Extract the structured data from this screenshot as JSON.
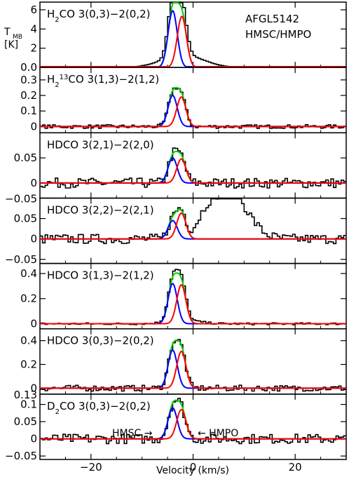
{
  "chart_data": {
    "type": "line",
    "source": "AFGL5142",
    "subtitle": "HMSC/HMPO",
    "xlabel": "Velocity (km/s)",
    "ylabel_main": "T",
    "ylabel_sub": "MB",
    "ylabel_unit": "[K]",
    "xlim": [
      -30,
      30
    ],
    "x_ticks": [
      -20,
      0,
      20
    ],
    "x_tick_labels": [
      "−20",
      "0",
      "20"
    ],
    "annotations": {
      "hmsc": "HMSC →",
      "hmpo": "← HMPO"
    },
    "series_colors": {
      "spectrum": "#000000",
      "hmsc_fit": "#0000ff",
      "hmpo_fit": "#ff0000",
      "total_fit": "#00cc00"
    },
    "panels": [
      {
        "label_parts": [
          {
            "t": "H"
          },
          {
            "t": "2",
            "sub": true
          },
          {
            "t": "CO 3(0,3)−2(0,2)"
          }
        ],
        "ylim": [
          0,
          6.8
        ],
        "y_ticks": [
          0,
          2,
          4,
          6
        ],
        "y_tick_labels": [
          "0.0",
          "2",
          "4",
          "6"
        ],
        "components": [
          {
            "center": -4.0,
            "width": 0.9,
            "amp": 5.9
          },
          {
            "center": -2.2,
            "width": 0.9,
            "amp": 5.3
          }
        ],
        "wings": {
          "amp": 1.3,
          "center": -2.0,
          "width": 4.0
        },
        "noise": 0.0,
        "extra": []
      },
      {
        "label_parts": [
          {
            "t": "H"
          },
          {
            "t": "2",
            "sub": true
          },
          {
            "t": "13",
            "sup": true
          },
          {
            "t": "CO 3(1,3)−2(1,2)"
          }
        ],
        "ylim": [
          -0.04,
          0.38
        ],
        "y_ticks": [
          0,
          0.1,
          0.2,
          0.3
        ],
        "y_tick_labels": [
          "0",
          "0.1",
          "0.2",
          "0.3"
        ],
        "components": [
          {
            "center": -4.0,
            "width": 0.9,
            "amp": 0.2
          },
          {
            "center": -2.3,
            "width": 0.9,
            "amp": 0.19
          }
        ],
        "wings": null,
        "noise": 0.012,
        "extra": []
      },
      {
        "label_parts": [
          {
            "t": "HDCO 3(2,1)−2(2,0)"
          }
        ],
        "ylim": [
          -0.03,
          0.1
        ],
        "y_ticks": [
          0,
          0.05
        ],
        "y_tick_labels": [
          "0",
          "0.05"
        ],
        "components": [
          {
            "center": -4.0,
            "width": 0.9,
            "amp": 0.05
          },
          {
            "center": -2.3,
            "width": 0.9,
            "amp": 0.048
          }
        ],
        "wings": null,
        "noise": 0.01,
        "extra": []
      },
      {
        "label_parts": [
          {
            "t": "HDCO 3(2,2)−2(2,1)"
          }
        ],
        "ylim": [
          -0.06,
          0.1
        ],
        "y_ticks": [
          -0.05,
          0,
          0.05
        ],
        "y_tick_labels": [
          "−0.05",
          "0",
          "0.05"
        ],
        "top_label": "−0.05",
        "components": [
          {
            "center": -4.0,
            "width": 0.9,
            "amp": 0.045
          },
          {
            "center": -2.3,
            "width": 0.9,
            "amp": 0.063
          }
        ],
        "wings": null,
        "noise": 0.012,
        "extra": [
          {
            "center": 7.0,
            "width": 3.5,
            "amp": 0.12
          },
          {
            "center": 2.5,
            "width": 1.6,
            "amp": 0.03
          }
        ]
      },
      {
        "label_parts": [
          {
            "t": "HDCO 3(1,3)−2(1,2)"
          }
        ],
        "ylim": [
          -0.04,
          0.48
        ],
        "y_ticks": [
          0,
          0.2,
          0.4
        ],
        "y_tick_labels": [
          "0",
          "0.2",
          "0.4"
        ],
        "components": [
          {
            "center": -4.0,
            "width": 0.9,
            "amp": 0.32
          },
          {
            "center": -2.3,
            "width": 0.9,
            "amp": 0.31
          }
        ],
        "wings": {
          "amp": 0.03,
          "center": -2.0,
          "width": 3.0
        },
        "noise": 0.008,
        "extra": []
      },
      {
        "label_parts": [
          {
            "t": "HDCO 3(0,3)−2(0,2)"
          }
        ],
        "ylim": [
          -0.05,
          0.5
        ],
        "y_ticks": [
          0,
          0.2,
          0.4
        ],
        "y_tick_labels": [
          "0",
          "0.2",
          "0.4"
        ],
        "components": [
          {
            "center": -4.0,
            "width": 0.9,
            "amp": 0.32
          },
          {
            "center": -2.3,
            "width": 0.9,
            "amp": 0.31
          }
        ],
        "wings": null,
        "noise": 0.025,
        "extra": []
      },
      {
        "label_parts": [
          {
            "t": "D"
          },
          {
            "t": "2",
            "sub": true
          },
          {
            "t": "CO 3(0,3)−2(0,2)"
          }
        ],
        "ylim": [
          -0.06,
          0.13
        ],
        "y_ticks": [
          -0.05,
          0,
          0.05,
          0.1
        ],
        "y_tick_labels": [
          "−0.05",
          "0",
          "0.05",
          "0.1"
        ],
        "top_label": "0.13",
        "components": [
          {
            "center": -4.0,
            "width": 0.9,
            "amp": 0.09
          },
          {
            "center": -2.3,
            "width": 0.9,
            "amp": 0.085
          }
        ],
        "wings": null,
        "noise": 0.014,
        "extra": []
      }
    ]
  }
}
